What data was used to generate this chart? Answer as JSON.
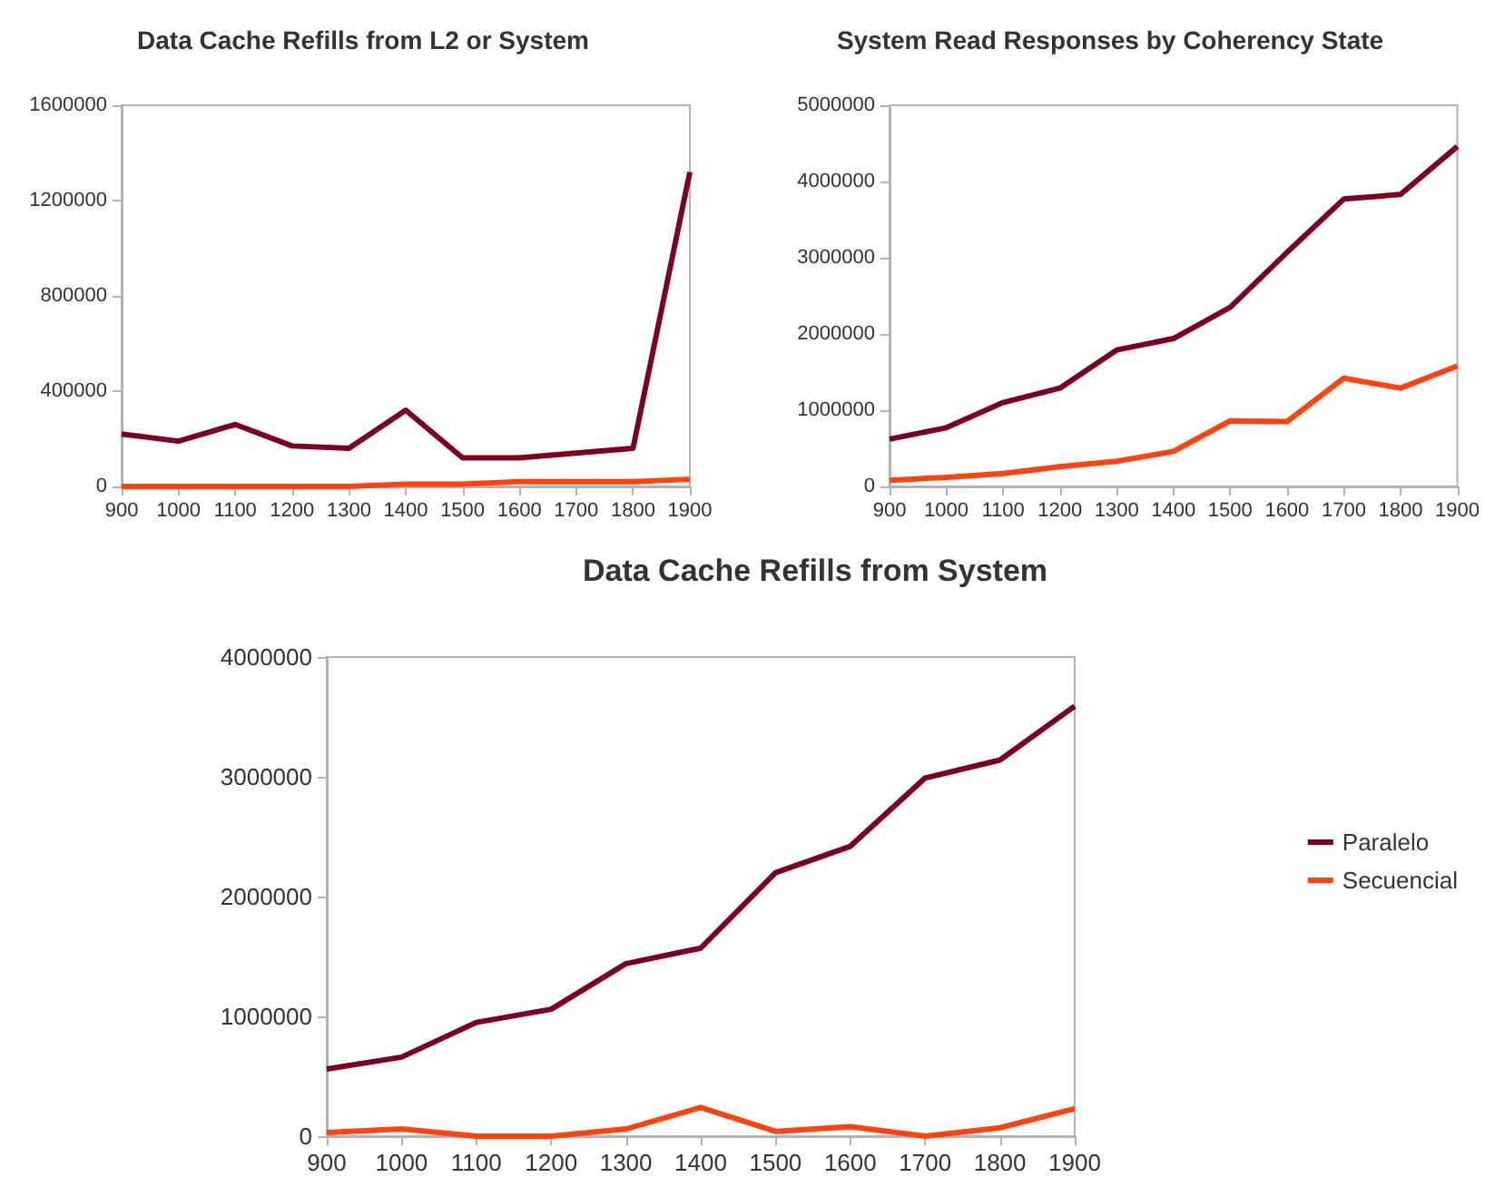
{
  "chart_data": [
    {
      "type": "line",
      "title": "Data Cache Refills from L2 or System",
      "x": [
        900,
        1000,
        1100,
        1200,
        1300,
        1400,
        1500,
        1600,
        1700,
        1800,
        1900
      ],
      "xlim": [
        900,
        1900
      ],
      "xticks": [
        900,
        1000,
        1100,
        1200,
        1300,
        1400,
        1500,
        1600,
        1700,
        1800,
        1900
      ],
      "ylim": [
        0,
        1600000
      ],
      "yticks": [
        0,
        400000,
        800000,
        1200000,
        1600000
      ],
      "grid": false,
      "legend": false,
      "marker": "none",
      "series": [
        {
          "color": "#7e0021",
          "values": [
            220000,
            190000,
            260000,
            170000,
            160000,
            320000,
            120000,
            120000,
            140000,
            160000,
            1320000
          ]
        },
        {
          "color": "#ff420e",
          "values": [
            0,
            0,
            0,
            0,
            0,
            10000,
            10000,
            20000,
            20000,
            20000,
            30000
          ]
        }
      ]
    },
    {
      "type": "line",
      "title": "System Read Responses by Coherency State",
      "x": [
        900,
        1000,
        1100,
        1200,
        1300,
        1400,
        1500,
        1600,
        1700,
        1800,
        1900
      ],
      "xlim": [
        900,
        1900
      ],
      "xticks": [
        900,
        1000,
        1100,
        1200,
        1300,
        1400,
        1500,
        1600,
        1700,
        1800,
        1900
      ],
      "ylim": [
        0,
        5000000
      ],
      "yticks": [
        0,
        1000000,
        2000000,
        3000000,
        4000000,
        5000000
      ],
      "grid": false,
      "legend": false,
      "marker": "none",
      "series": [
        {
          "color": "#7e0021",
          "values": [
            620000,
            770000,
            1100000,
            1290000,
            1790000,
            1940000,
            2350000,
            3070000,
            3770000,
            3830000,
            4460000
          ]
        },
        {
          "color": "#ff420e",
          "values": [
            80000,
            120000,
            170000,
            260000,
            330000,
            460000,
            860000,
            850000,
            1420000,
            1290000,
            1580000
          ]
        }
      ]
    },
    {
      "type": "line",
      "title": "Data Cache Refills from System",
      "x": [
        900,
        1000,
        1100,
        1200,
        1300,
        1400,
        1500,
        1600,
        1700,
        1800,
        1900
      ],
      "xlim": [
        900,
        1900
      ],
      "xticks": [
        900,
        1000,
        1100,
        1200,
        1300,
        1400,
        1500,
        1600,
        1700,
        1800,
        1900
      ],
      "ylim": [
        0,
        4000000
      ],
      "yticks": [
        0,
        1000000,
        2000000,
        3000000,
        4000000
      ],
      "grid": false,
      "legend": "right",
      "marker": "none",
      "series": [
        {
          "name": "Paralelo",
          "color": "#7e0021",
          "values": [
            560000,
            660000,
            950000,
            1060000,
            1440000,
            1570000,
            2200000,
            2420000,
            2990000,
            3140000,
            3590000
          ]
        },
        {
          "name": "Secuencial",
          "color": "#ff420e",
          "values": [
            30000,
            60000,
            0,
            0,
            60000,
            240000,
            40000,
            80000,
            0,
            70000,
            230000
          ]
        }
      ]
    }
  ]
}
